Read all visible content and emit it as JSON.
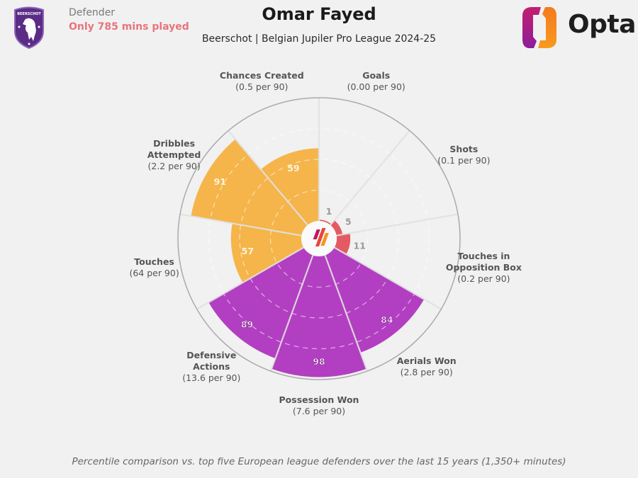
{
  "header": {
    "position": "Defender",
    "minutes_note": "Only 785 mins played",
    "player_name": "Omar Fayed",
    "subtitle": "Beerschot | Belgian Jupiler Pro League 2024-25",
    "brand": "Opta",
    "crest_icon": "beerschot-crest-icon",
    "crest_text": "BEERSCHOT"
  },
  "footnote": "Percentile comparison vs. top five European league defenders over the last 15 years (1,350+ minutes)",
  "colors": {
    "attacking": "#e45a63",
    "possession": "#f5b54b",
    "defending": "#b23fc1",
    "background": "#f1f1f1",
    "minutes_note": "#e8747c",
    "crest": "#5b2c86"
  },
  "chart_data": {
    "type": "pie",
    "subtype": "polar-area",
    "title": "Omar Fayed",
    "scale": [
      0,
      100
    ],
    "unit": "percentile",
    "gridlines": [
      25,
      50,
      75
    ],
    "categories": [
      {
        "name": "Goals",
        "per90": "(0.00 per 90)",
        "percentile": 1,
        "group": "attacking"
      },
      {
        "name": "Shots",
        "per90": "(0.1 per 90)",
        "percentile": 5,
        "group": "attacking"
      },
      {
        "name": "Touches in Opposition Box",
        "label_lines": [
          "Touches in",
          "Opposition Box"
        ],
        "per90": "(0.2 per 90)",
        "percentile": 11,
        "group": "attacking"
      },
      {
        "name": "Aerials Won",
        "per90": "(2.8 per 90)",
        "percentile": 84,
        "group": "defending"
      },
      {
        "name": "Possession Won",
        "per90": "(7.6 per 90)",
        "percentile": 98,
        "group": "defending"
      },
      {
        "name": "Defensive Actions",
        "label_lines": [
          "Defensive",
          "Actions"
        ],
        "per90": "(13.6 per 90)",
        "percentile": 89,
        "group": "defending"
      },
      {
        "name": "Touches",
        "per90": "(64 per 90)",
        "percentile": 57,
        "group": "possession"
      },
      {
        "name": "Dribbles Attempted",
        "label_lines": [
          "Dribbles",
          "Attempted"
        ],
        "per90": "(2.2 per 90)",
        "percentile": 91,
        "group": "possession"
      },
      {
        "name": "Chances Created",
        "per90": "(0.5 per 90)",
        "percentile": 59,
        "group": "possession"
      }
    ]
  }
}
